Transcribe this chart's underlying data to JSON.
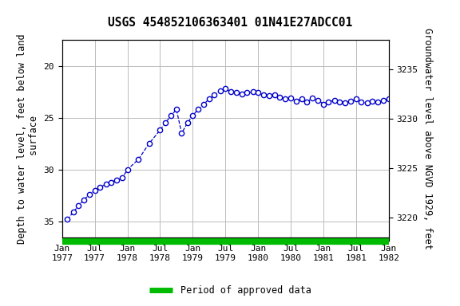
{
  "title": "USGS 454852106363401 01N41E27ADCC01",
  "xtick_positions": [
    1977.0,
    1977.5,
    1978.0,
    1978.5,
    1979.0,
    1979.5,
    1980.0,
    1980.5,
    1981.0,
    1981.5,
    1982.0
  ],
  "xtick_labels": [
    "Jan\n1977",
    "Jul\n1977",
    "Jan\n1978",
    "Jul\n1978",
    "Jan\n1979",
    "Jul\n1979",
    "Jan\n1980",
    "Jul\n1980",
    "Jan\n1981",
    "Jul\n1981",
    "Jan\n1982"
  ],
  "ylabel_left": "Depth to water level, feet below land\n surface",
  "ylabel_right": "Groundwater level above NGVD 1929, feet",
  "ylim_left": [
    36.5,
    17.5
  ],
  "ylim_right": [
    3218.0,
    3238.0
  ],
  "yticks_left": [
    20,
    25,
    30,
    35
  ],
  "yticks_right": [
    3220,
    3225,
    3230,
    3235
  ],
  "line_color": "#0000cc",
  "marker_face": "#ffffff",
  "grid_color": "#bbbbbb",
  "bg_color": "#ffffff",
  "green_bar_color": "#00bb00",
  "legend_label": "Period of approved data",
  "title_fontsize": 10.5,
  "label_fontsize": 8.5,
  "tick_fontsize": 8,
  "data_x": [
    1977.08,
    1977.17,
    1977.25,
    1977.33,
    1977.42,
    1977.5,
    1977.58,
    1977.67,
    1977.75,
    1977.83,
    1977.92,
    1978.0,
    1978.17,
    1978.33,
    1978.5,
    1978.58,
    1978.67,
    1978.75,
    1978.83,
    1978.92,
    1979.0,
    1979.08,
    1979.17,
    1979.25,
    1979.33,
    1979.42,
    1979.5,
    1979.58,
    1979.67,
    1979.75,
    1979.83,
    1979.92,
    1980.0,
    1980.08,
    1980.17,
    1980.25,
    1980.33,
    1980.42,
    1980.5,
    1980.58,
    1980.67,
    1980.75,
    1980.83,
    1980.92,
    1981.0,
    1981.08,
    1981.17,
    1981.25,
    1981.33,
    1981.42,
    1981.5,
    1981.58,
    1981.67,
    1981.75,
    1981.83,
    1981.92,
    1982.0
  ],
  "data_y": [
    34.8,
    34.1,
    33.5,
    32.9,
    32.4,
    32.0,
    31.7,
    31.4,
    31.2,
    31.0,
    30.8,
    30.0,
    29.0,
    27.5,
    26.2,
    25.5,
    24.8,
    24.2,
    26.5,
    25.5,
    24.8,
    24.2,
    23.7,
    23.2,
    22.8,
    22.4,
    22.2,
    22.5,
    22.6,
    22.7,
    22.6,
    22.5,
    22.6,
    22.8,
    22.9,
    22.8,
    23.0,
    23.2,
    23.1,
    23.4,
    23.2,
    23.5,
    23.1,
    23.3,
    23.7,
    23.5,
    23.3,
    23.5,
    23.6,
    23.4,
    23.2,
    23.5,
    23.6,
    23.4,
    23.5,
    23.3,
    23.2
  ]
}
